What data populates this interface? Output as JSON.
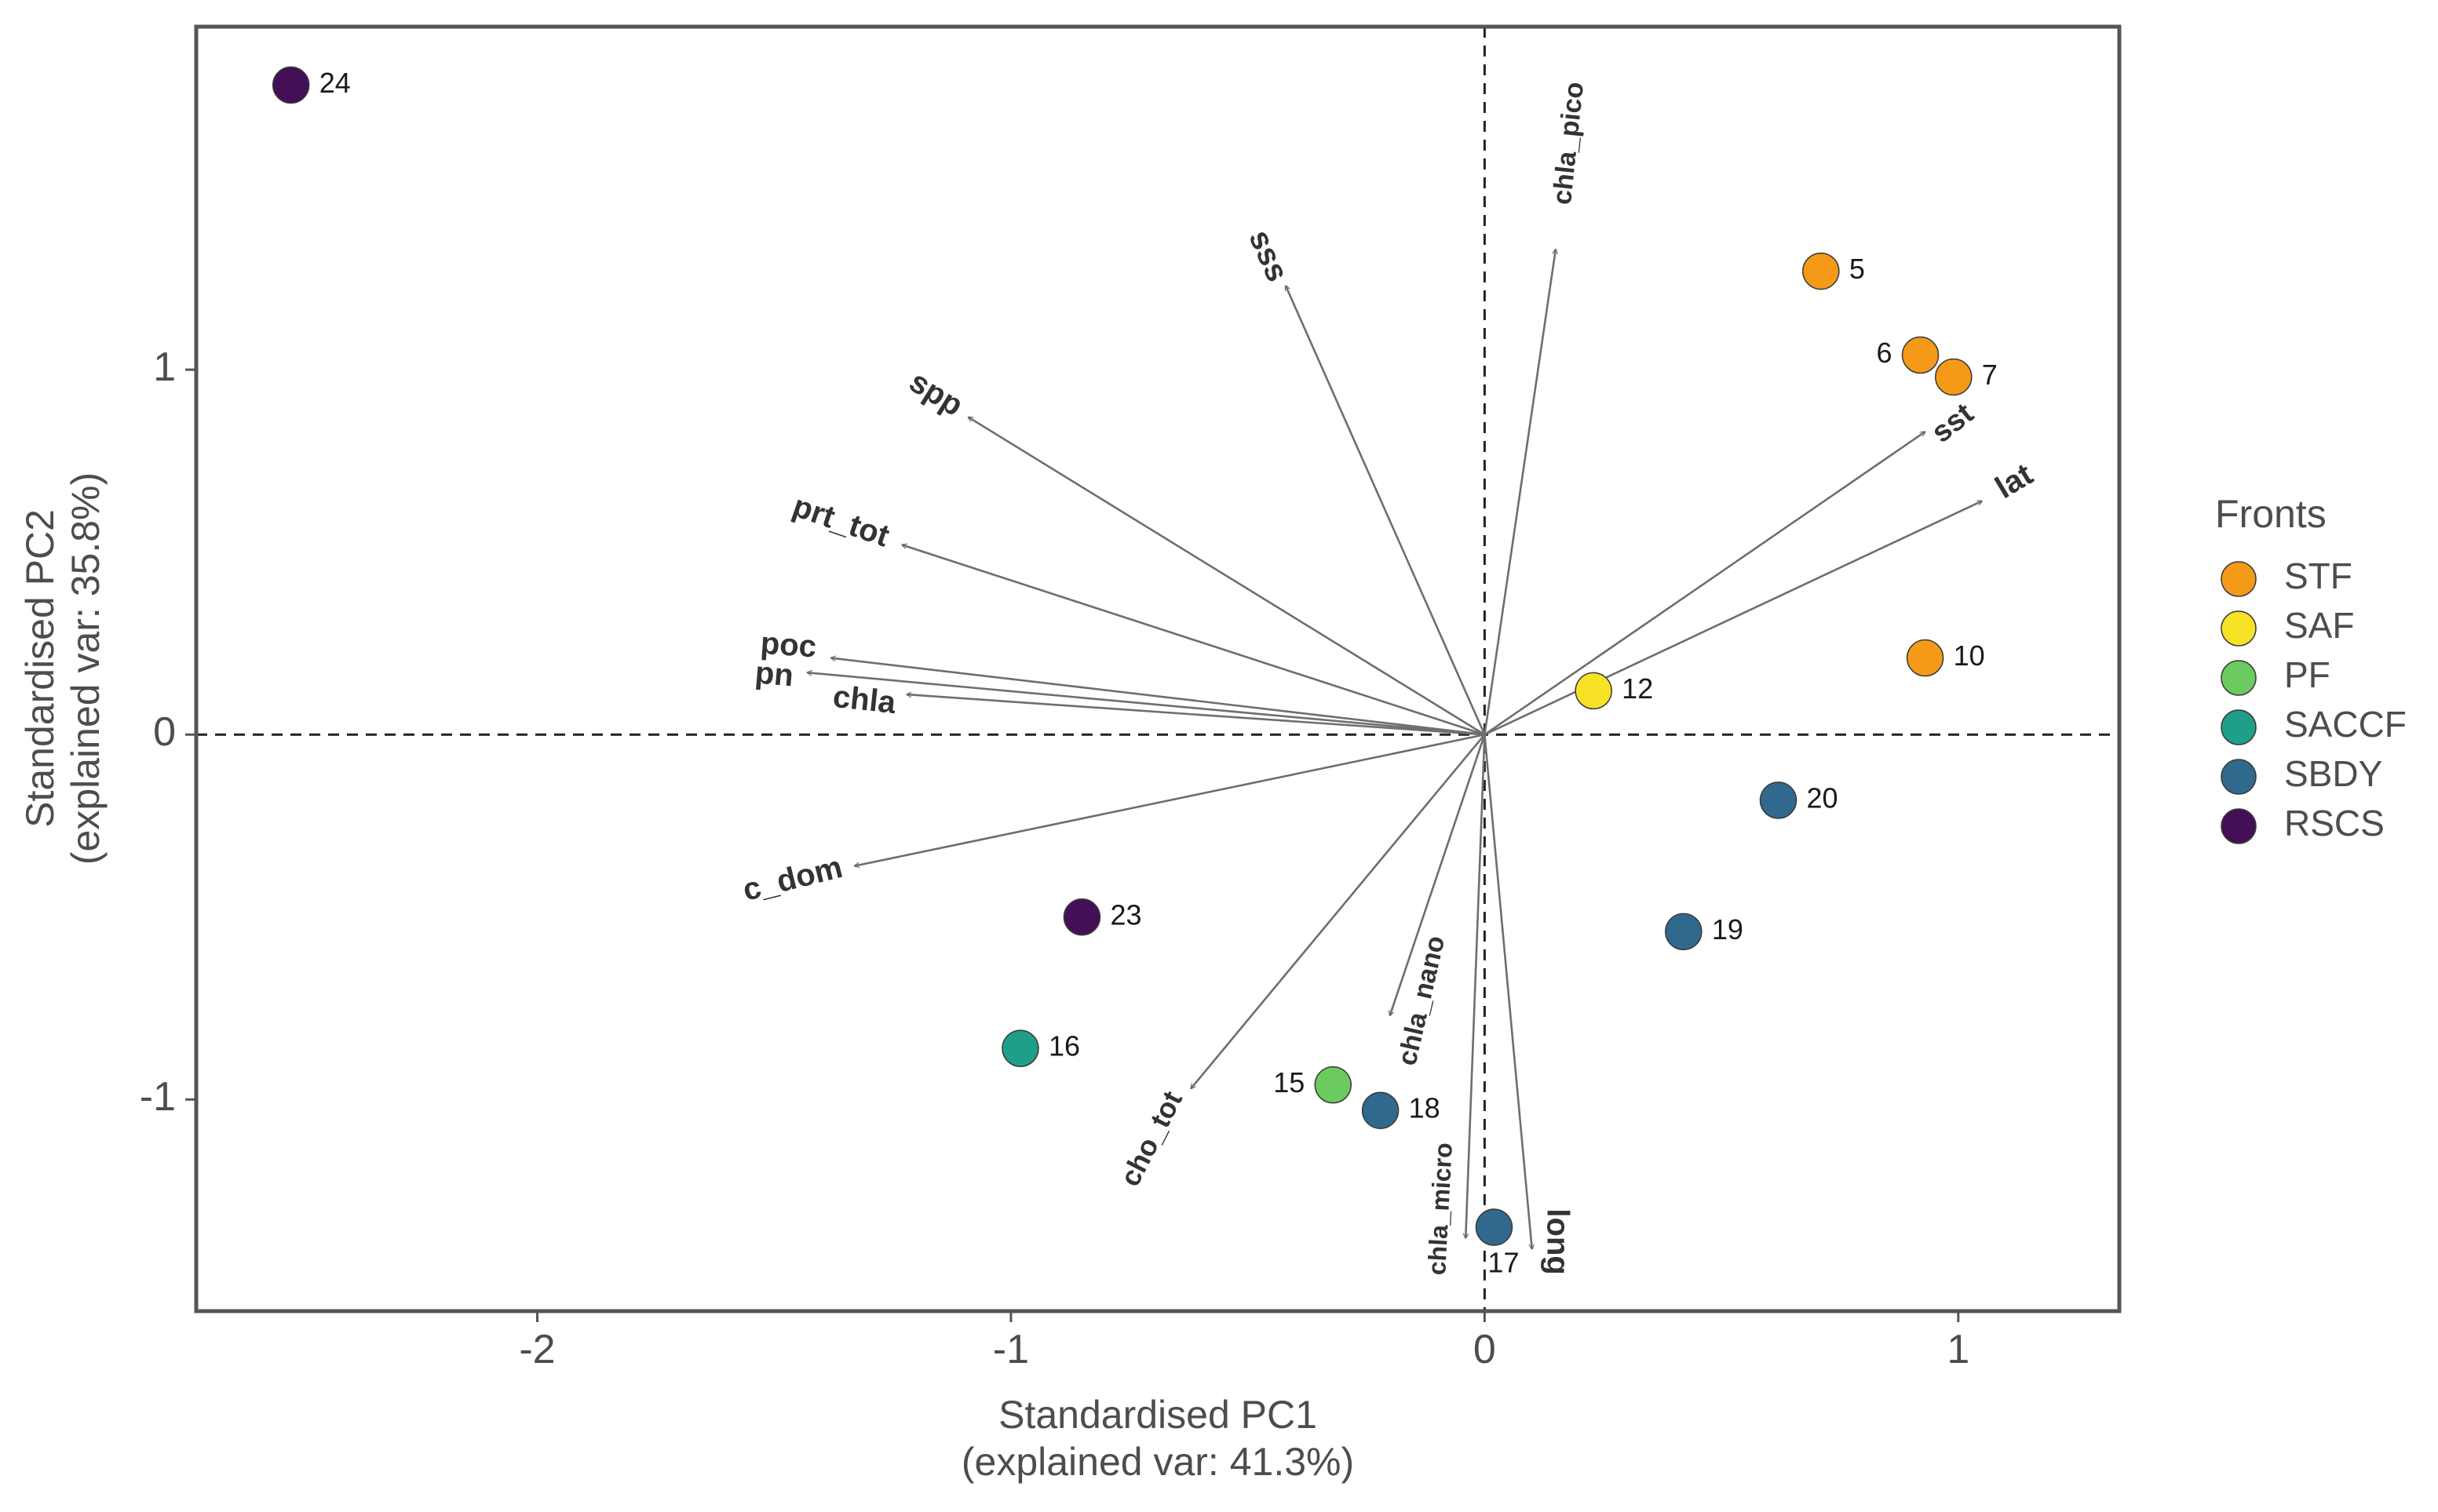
{
  "chart_data": {
    "type": "scatter",
    "subtype": "pca-biplot",
    "xlabel_lines": [
      "Standardised PC1",
      "(explained var: 41.3%)"
    ],
    "ylabel_lines": [
      "Standardised PC2",
      "(explained var: 35.8%)"
    ],
    "xlim": [
      -2.72,
      1.34
    ],
    "ylim": [
      -1.58,
      1.94
    ],
    "x_ticks": [
      {
        "value": -2,
        "label": "-2"
      },
      {
        "value": -1,
        "label": "-1"
      },
      {
        "value": 0,
        "label": "0"
      },
      {
        "value": 1,
        "label": "1"
      }
    ],
    "y_ticks": [
      {
        "value": -1,
        "label": "-1"
      },
      {
        "value": 0,
        "label": "0"
      },
      {
        "value": 1,
        "label": "1"
      }
    ],
    "legend": {
      "title": "Fronts",
      "position": "right",
      "entries": [
        {
          "name": "STF",
          "color": "#F59A18"
        },
        {
          "name": "SAF",
          "color": "#F8E227"
        },
        {
          "name": "PF",
          "color": "#6CCB5F"
        },
        {
          "name": "SACCF",
          "color": "#1F9E89"
        },
        {
          "name": "SBDY",
          "color": "#31688E"
        },
        {
          "name": "RSCS",
          "color": "#440F57"
        }
      ]
    },
    "points": [
      {
        "label": "24",
        "front": "RSCS",
        "x": -2.52,
        "y": 1.78,
        "label_side": "right"
      },
      {
        "label": "5",
        "front": "STF",
        "x": 0.71,
        "y": 1.27,
        "label_side": "right"
      },
      {
        "label": "6",
        "front": "STF",
        "x": 0.92,
        "y": 1.04,
        "label_side": "left"
      },
      {
        "label": "7",
        "front": "STF",
        "x": 0.99,
        "y": 0.98,
        "label_side": "right"
      },
      {
        "label": "10",
        "front": "STF",
        "x": 0.93,
        "y": 0.21,
        "label_side": "right"
      },
      {
        "label": "12",
        "front": "SAF",
        "x": 0.23,
        "y": 0.12,
        "label_side": "right"
      },
      {
        "label": "20",
        "front": "SBDY",
        "x": 0.62,
        "y": -0.18,
        "label_side": "right"
      },
      {
        "label": "19",
        "front": "SBDY",
        "x": 0.42,
        "y": -0.54,
        "label_side": "right"
      },
      {
        "label": "18",
        "front": "SBDY",
        "x": -0.22,
        "y": -1.03,
        "label_side": "right"
      },
      {
        "label": "17",
        "front": "SBDY",
        "x": 0.02,
        "y": -1.35,
        "label_side": "below"
      },
      {
        "label": "15",
        "front": "PF",
        "x": -0.32,
        "y": -0.96,
        "label_side": "left"
      },
      {
        "label": "16",
        "front": "SACCF",
        "x": -0.98,
        "y": -0.86,
        "label_side": "right"
      },
      {
        "label": "23",
        "front": "RSCS",
        "x": -0.85,
        "y": -0.5,
        "label_side": "right"
      }
    ],
    "loadings": [
      {
        "name": "sss",
        "x": -0.42,
        "y": 1.23,
        "lx": -0.46,
        "ly": 1.31,
        "angle": 66,
        "size": 40
      },
      {
        "name": "chla_pico",
        "x": 0.15,
        "y": 1.33,
        "lx": 0.18,
        "ly": 1.62,
        "angle": -84,
        "size": 34
      },
      {
        "name": "spp",
        "x": -1.09,
        "y": 0.87,
        "lx": -1.16,
        "ly": 0.93,
        "angle": 32,
        "size": 40
      },
      {
        "name": "prt_tot",
        "x": -1.23,
        "y": 0.52,
        "lx": -1.36,
        "ly": 0.58,
        "angle": 19,
        "size": 40
      },
      {
        "name": "poc",
        "x": -1.38,
        "y": 0.21,
        "lx": -1.47,
        "ly": 0.24,
        "angle": 4,
        "size": 40
      },
      {
        "name": "pn",
        "x": -1.43,
        "y": 0.17,
        "lx": -1.5,
        "ly": 0.16,
        "angle": 5,
        "size": 40
      },
      {
        "name": "chla",
        "x": -1.22,
        "y": 0.11,
        "lx": -1.31,
        "ly": 0.09,
        "angle": 6,
        "size": 40
      },
      {
        "name": "c_dom",
        "x": -1.33,
        "y": -0.36,
        "lx": -1.46,
        "ly": -0.4,
        "angle": -14,
        "size": 40
      },
      {
        "name": "sst",
        "x": 0.93,
        "y": 0.83,
        "lx": 0.99,
        "ly": 0.85,
        "angle": -38,
        "size": 38
      },
      {
        "name": "lat",
        "x": 1.05,
        "y": 0.64,
        "lx": 1.12,
        "ly": 0.69,
        "angle": -31,
        "size": 40
      },
      {
        "name": "cho_tot",
        "x": -0.62,
        "y": -0.97,
        "lx": -0.7,
        "ly": -1.11,
        "angle": -63,
        "size": 36
      },
      {
        "name": "chla_nano",
        "x": -0.2,
        "y": -0.77,
        "lx": -0.13,
        "ly": -0.73,
        "angle": -77,
        "size": 34
      },
      {
        "name": "chla_micro",
        "x": -0.04,
        "y": -1.38,
        "lx": -0.09,
        "ly": -1.3,
        "angle": -87,
        "size": 32
      },
      {
        "name": "long",
        "x": 0.1,
        "y": -1.41,
        "lx": 0.15,
        "ly": -1.39,
        "angle": 90,
        "size": 40
      }
    ]
  }
}
